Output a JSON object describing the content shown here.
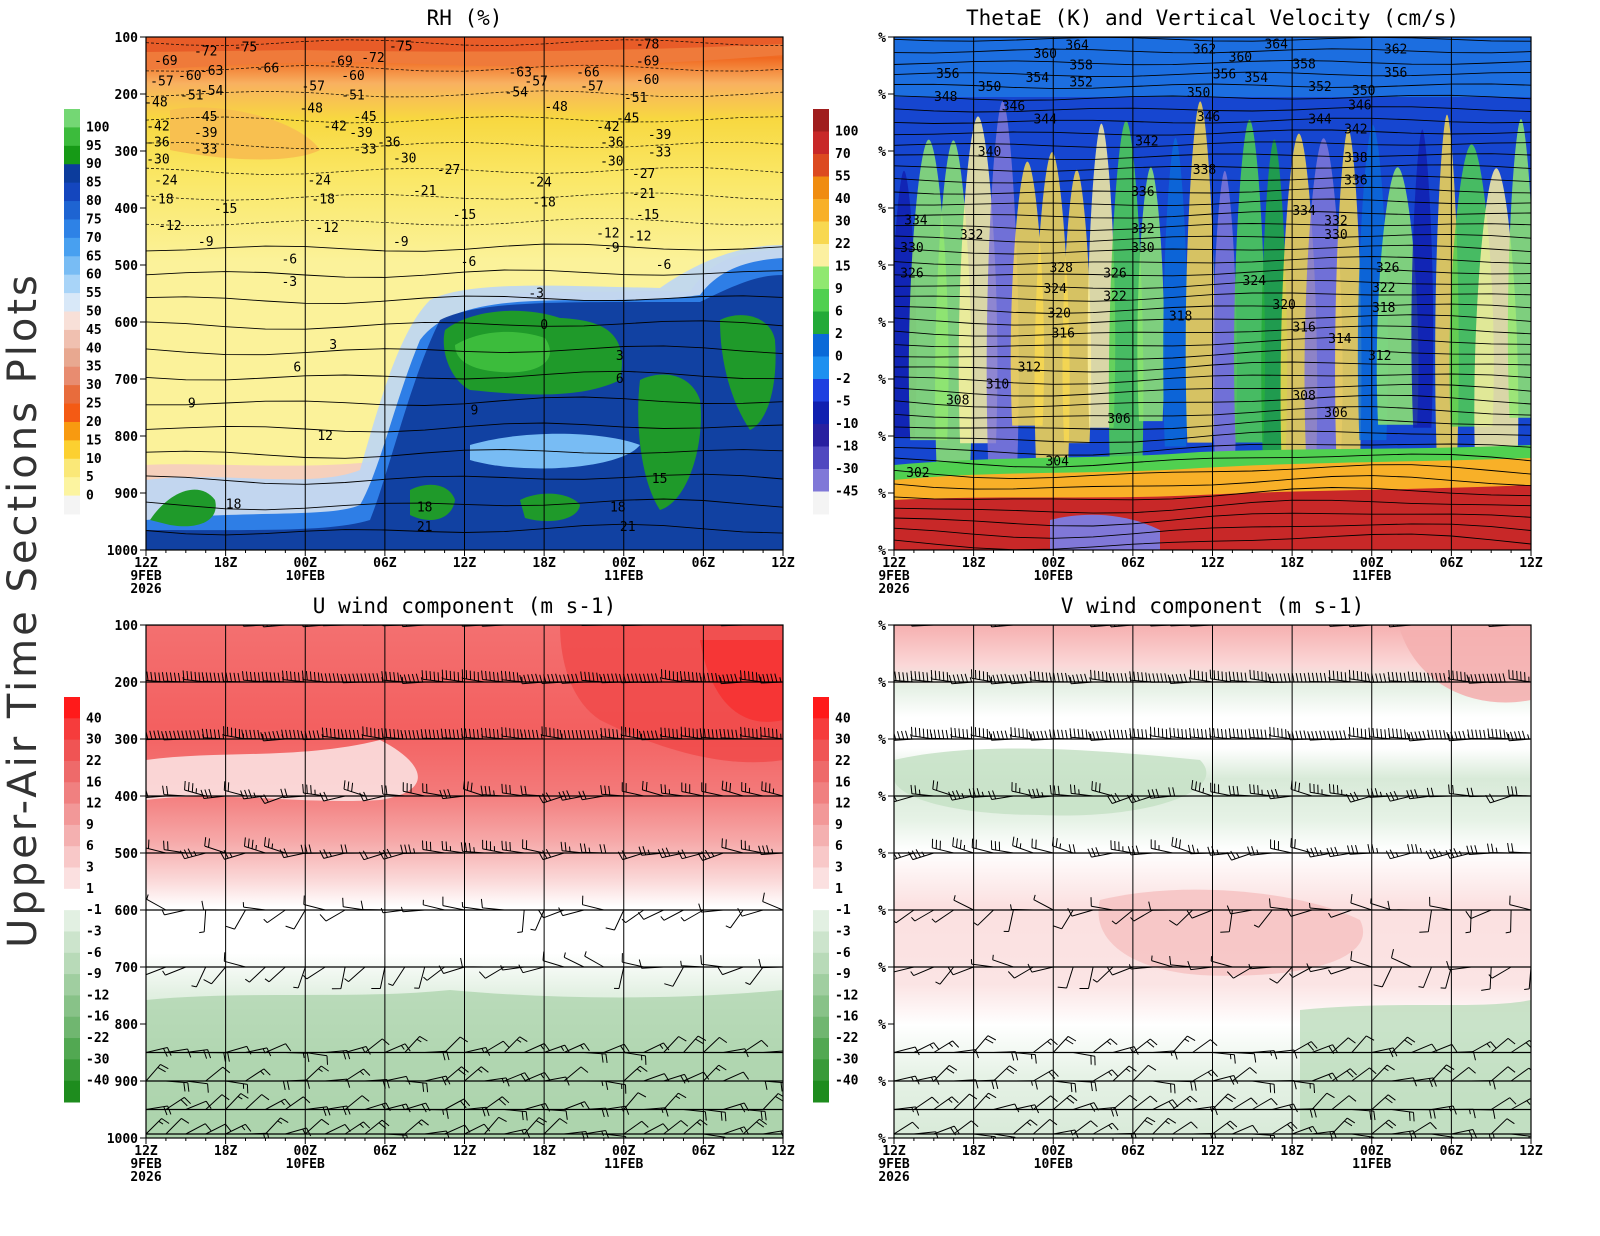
{
  "figure": {
    "side_title": "Upper-Air Time Sections Plots"
  },
  "chart_data": [
    {
      "type": "heatmap",
      "panel": "rh",
      "title": "RH (%)",
      "yticks": [
        "100",
        "200",
        "300",
        "400",
        "500",
        "600",
        "700",
        "800",
        "900",
        "1000"
      ],
      "x_major": [
        "12Z",
        "18Z",
        "00Z",
        "06Z",
        "12Z",
        "18Z",
        "00Z",
        "06Z",
        "12Z"
      ],
      "date_labels": [
        {
          "at": 0,
          "date": "9FEB",
          "year": "2026"
        },
        {
          "at": 2,
          "date": "10FEB"
        },
        {
          "at": 6,
          "date": "11FEB"
        }
      ],
      "colorbar_levels": [
        "100",
        "95",
        "90",
        "85",
        "80",
        "75",
        "70",
        "65",
        "60",
        "55",
        "50",
        "45",
        "40",
        "35",
        "30",
        "25",
        "20",
        "15",
        "10",
        "5",
        "0"
      ],
      "colorbar_colors": [
        "#74d774",
        "#3cbb3c",
        "#169a16",
        "#0c3c9c",
        "#1446be",
        "#1e64d2",
        "#2e82e6",
        "#48a0f0",
        "#78bcf4",
        "#a8d4f8",
        "#d8e8f8",
        "#f8e0d8",
        "#f0c0b0",
        "#e8a890",
        "#e88c70",
        "#e86c3c",
        "#f45a14",
        "#f89a10",
        "#fcd030",
        "#fae878",
        "#fcf4a0",
        "#f4f4f4"
      ],
      "contour_labels": [
        {
          "t": 0.5,
          "p": 142,
          "v": "-69"
        },
        {
          "t": 1.5,
          "p": 125,
          "v": "-72"
        },
        {
          "t": 2.5,
          "p": 118,
          "v": "-75"
        },
        {
          "t": 0.4,
          "p": 178,
          "v": "-57"
        },
        {
          "t": 1.1,
          "p": 168,
          "v": "-60"
        },
        {
          "t": 1.65,
          "p": 160,
          "v": "-63"
        },
        {
          "t": 3.05,
          "p": 155,
          "v": "-66"
        },
        {
          "t": 4.9,
          "p": 143,
          "v": "-69"
        },
        {
          "t": 5.7,
          "p": 137,
          "v": "-72"
        },
        {
          "t": 6.4,
          "p": 117,
          "v": "-75"
        },
        {
          "t": 12.6,
          "p": 113,
          "v": "-78"
        },
        {
          "t": 12.6,
          "p": 143,
          "v": "-69"
        },
        {
          "t": 12.6,
          "p": 175,
          "v": "-60"
        },
        {
          "t": 11.1,
          "p": 162,
          "v": "-66"
        },
        {
          "t": 9.4,
          "p": 162,
          "v": "-63"
        },
        {
          "t": 9.8,
          "p": 178,
          "v": "-57"
        },
        {
          "t": 9.3,
          "p": 197,
          "v": "-54"
        },
        {
          "t": 11.2,
          "p": 187,
          "v": "-57"
        },
        {
          "t": 4.2,
          "p": 187,
          "v": "-57"
        },
        {
          "t": 5.2,
          "p": 168,
          "v": "-60"
        },
        {
          "t": 1.65,
          "p": 195,
          "v": "-54"
        },
        {
          "t": 1.15,
          "p": 203,
          "v": "-51"
        },
        {
          "t": 5.2,
          "p": 203,
          "v": "-51"
        },
        {
          "t": 12.3,
          "p": 207,
          "v": "-51"
        },
        {
          "t": 0.25,
          "p": 215,
          "v": "-48"
        },
        {
          "t": 4.15,
          "p": 225,
          "v": "-48"
        },
        {
          "t": 10.3,
          "p": 223,
          "v": "-48"
        },
        {
          "t": 1.5,
          "p": 240,
          "v": "-45"
        },
        {
          "t": 5.5,
          "p": 240,
          "v": "-45"
        },
        {
          "t": 12.1,
          "p": 243,
          "v": "-45"
        },
        {
          "t": 0.3,
          "p": 257,
          "v": "-42"
        },
        {
          "t": 4.75,
          "p": 257,
          "v": "-42"
        },
        {
          "t": 11.6,
          "p": 258,
          "v": "-42"
        },
        {
          "t": 1.5,
          "p": 268,
          "v": "-39"
        },
        {
          "t": 5.4,
          "p": 268,
          "v": "-39"
        },
        {
          "t": 12.9,
          "p": 272,
          "v": "-39"
        },
        {
          "t": 0.3,
          "p": 285,
          "v": "-36"
        },
        {
          "t": 6.1,
          "p": 285,
          "v": "-36"
        },
        {
          "t": 11.7,
          "p": 285,
          "v": "-36"
        },
        {
          "t": 1.5,
          "p": 297,
          "v": "-33"
        },
        {
          "t": 5.5,
          "p": 297,
          "v": "-33"
        },
        {
          "t": 12.9,
          "p": 303,
          "v": "-33"
        },
        {
          "t": 0.3,
          "p": 315,
          "v": "-30"
        },
        {
          "t": 6.5,
          "p": 313,
          "v": "-30"
        },
        {
          "t": 11.7,
          "p": 318,
          "v": "-30"
        },
        {
          "t": 12.5,
          "p": 340,
          "v": "-27"
        },
        {
          "t": 7.6,
          "p": 333,
          "v": "-27"
        },
        {
          "t": 0.5,
          "p": 352,
          "v": "-24"
        },
        {
          "t": 4.35,
          "p": 352,
          "v": "-24"
        },
        {
          "t": 9.9,
          "p": 355,
          "v": "-24"
        },
        {
          "t": 7,
          "p": 370,
          "v": "-21"
        },
        {
          "t": 12.5,
          "p": 375,
          "v": "-21"
        },
        {
          "t": 0.4,
          "p": 385,
          "v": "-18"
        },
        {
          "t": 4.45,
          "p": 385,
          "v": "-18"
        },
        {
          "t": 10,
          "p": 390,
          "v": "-18"
        },
        {
          "t": 2,
          "p": 402,
          "v": "-15"
        },
        {
          "t": 8,
          "p": 412,
          "v": "-15"
        },
        {
          "t": 12.6,
          "p": 412,
          "v": "-15"
        },
        {
          "t": 0.6,
          "p": 432,
          "v": "-12"
        },
        {
          "t": 4.55,
          "p": 435,
          "v": "-12"
        },
        {
          "t": 11.6,
          "p": 445,
          "v": "-12"
        },
        {
          "t": 1.5,
          "p": 460,
          "v": "-9"
        },
        {
          "t": 6.4,
          "p": 460,
          "v": "-9"
        },
        {
          "t": 11.7,
          "p": 470,
          "v": "-9"
        },
        {
          "t": 12.4,
          "p": 450,
          "v": "-12"
        },
        {
          "t": 3.6,
          "p": 490,
          "v": "-6"
        },
        {
          "t": 8.1,
          "p": 495,
          "v": "-6"
        },
        {
          "t": 13.0,
          "p": 500,
          "v": "-6"
        },
        {
          "t": 3.6,
          "p": 530,
          "v": "-3"
        },
        {
          "t": 9.8,
          "p": 550,
          "v": "-3"
        },
        {
          "t": 10,
          "p": 605,
          "v": "0"
        },
        {
          "t": 4.7,
          "p": 640,
          "v": "3"
        },
        {
          "t": 11.9,
          "p": 660,
          "v": "3"
        },
        {
          "t": 3.8,
          "p": 680,
          "v": "6"
        },
        {
          "t": 11.9,
          "p": 700,
          "v": "6"
        },
        {
          "t": 1.15,
          "p": 743,
          "v": "9"
        },
        {
          "t": 8.25,
          "p": 755,
          "v": "9"
        },
        {
          "t": 4.5,
          "p": 800,
          "v": "12"
        },
        {
          "t": 12.9,
          "p": 875,
          "v": "15"
        },
        {
          "t": 2.2,
          "p": 920,
          "v": "18"
        },
        {
          "t": 7,
          "p": 925,
          "v": "18"
        },
        {
          "t": 11.85,
          "p": 925,
          "v": "18"
        },
        {
          "t": 7,
          "p": 960,
          "v": "21"
        },
        {
          "t": 12.1,
          "p": 960,
          "v": "21"
        }
      ]
    },
    {
      "type": "heatmap",
      "panel": "thetae",
      "title": "ThetaE (K) and Vertical Velocity (cm/s)",
      "yticks": [
        "%",
        "%",
        "%",
        "%",
        "%",
        "%",
        "%",
        "%",
        "%",
        "%"
      ],
      "x_major": [
        "12Z",
        "18Z",
        "00Z",
        "06Z",
        "12Z",
        "18Z",
        "00Z",
        "06Z",
        "12Z"
      ],
      "date_labels": [
        {
          "at": 0,
          "date": "9FEB",
          "year": "2026"
        },
        {
          "at": 2,
          "date": "10FEB"
        },
        {
          "at": 6,
          "date": "11FEB"
        }
      ],
      "colorbar_levels": [
        "100",
        "70",
        "55",
        "40",
        "30",
        "22",
        "15",
        "9",
        "6",
        "2",
        "0",
        "-2",
        "-5",
        "-10",
        "-18",
        "-30",
        "-45"
      ],
      "colorbar_colors": [
        "#a01e1e",
        "#c82828",
        "#dc4a20",
        "#f08c10",
        "#f8b028",
        "#f8d850",
        "#fcf0a0",
        "#90e870",
        "#50d050",
        "#22aa38",
        "#0a6ad8",
        "#1e90f0",
        "#1e40e0",
        "#1020b0",
        "#2820a0",
        "#5048c0",
        "#8078d8",
        "#f4f4f4"
      ],
      "contour_labels": [
        {
          "t": 4.6,
          "p": 115,
          "v": "364"
        },
        {
          "t": 3.8,
          "p": 130,
          "v": "360"
        },
        {
          "t": 7.8,
          "p": 122,
          "v": "362"
        },
        {
          "t": 8.7,
          "p": 136,
          "v": "360"
        },
        {
          "t": 9.6,
          "p": 113,
          "v": "364"
        },
        {
          "t": 10.3,
          "p": 148,
          "v": "358"
        },
        {
          "t": 12.6,
          "p": 122,
          "v": "362"
        },
        {
          "t": 4.7,
          "p": 150,
          "v": "358"
        },
        {
          "t": 3.6,
          "p": 172,
          "v": "354"
        },
        {
          "t": 1.35,
          "p": 165,
          "v": "356"
        },
        {
          "t": 12.6,
          "p": 163,
          "v": "356"
        },
        {
          "t": 8.3,
          "p": 166,
          "v": "356"
        },
        {
          "t": 9.1,
          "p": 172,
          "v": "354"
        },
        {
          "t": 2.4,
          "p": 188,
          "v": "350"
        },
        {
          "t": 4.7,
          "p": 180,
          "v": "352"
        },
        {
          "t": 1.3,
          "p": 205,
          "v": "348"
        },
        {
          "t": 7.65,
          "p": 198,
          "v": "350"
        },
        {
          "t": 10.7,
          "p": 188,
          "v": "352"
        },
        {
          "t": 11.8,
          "p": 195,
          "v": "350"
        },
        {
          "t": 3,
          "p": 222,
          "v": "346"
        },
        {
          "t": 7.9,
          "p": 240,
          "v": "346"
        },
        {
          "t": 11.7,
          "p": 220,
          "v": "346"
        },
        {
          "t": 3.8,
          "p": 245,
          "v": "344"
        },
        {
          "t": 10.7,
          "p": 245,
          "v": "344"
        },
        {
          "t": 11.6,
          "p": 262,
          "v": "342"
        },
        {
          "t": 6.35,
          "p": 283,
          "v": "342"
        },
        {
          "t": 2.4,
          "p": 302,
          "v": "340"
        },
        {
          "t": 11.6,
          "p": 312,
          "v": "338"
        },
        {
          "t": 7.8,
          "p": 333,
          "v": "338"
        },
        {
          "t": 11.6,
          "p": 352,
          "v": "336"
        },
        {
          "t": 6.25,
          "p": 372,
          "v": "336"
        },
        {
          "t": 10.3,
          "p": 405,
          "v": "334"
        },
        {
          "t": 0.55,
          "p": 422,
          "v": "334"
        },
        {
          "t": 11.1,
          "p": 423,
          "v": "332"
        },
        {
          "t": 1.95,
          "p": 447,
          "v": "332"
        },
        {
          "t": 6.25,
          "p": 437,
          "v": "332"
        },
        {
          "t": 11.1,
          "p": 447,
          "v": "330"
        },
        {
          "t": 0.45,
          "p": 470,
          "v": "330"
        },
        {
          "t": 6.25,
          "p": 470,
          "v": "330"
        },
        {
          "t": 4.2,
          "p": 505,
          "v": "328"
        },
        {
          "t": 5.55,
          "p": 515,
          "v": "326"
        },
        {
          "t": 0.45,
          "p": 515,
          "v": "326"
        },
        {
          "t": 12.4,
          "p": 505,
          "v": "326"
        },
        {
          "t": 9.05,
          "p": 528,
          "v": "324"
        },
        {
          "t": 4.05,
          "p": 542,
          "v": "324"
        },
        {
          "t": 12.3,
          "p": 540,
          "v": "322"
        },
        {
          "t": 5.55,
          "p": 555,
          "v": "322"
        },
        {
          "t": 9.8,
          "p": 570,
          "v": "320"
        },
        {
          "t": 4.15,
          "p": 585,
          "v": "320"
        },
        {
          "t": 12.3,
          "p": 575,
          "v": "318"
        },
        {
          "t": 7.2,
          "p": 590,
          "v": "318"
        },
        {
          "t": 10.3,
          "p": 610,
          "v": "316"
        },
        {
          "t": 4.25,
          "p": 620,
          "v": "316"
        },
        {
          "t": 11.2,
          "p": 630,
          "v": "314"
        },
        {
          "t": 12.2,
          "p": 660,
          "v": "312"
        },
        {
          "t": 3.4,
          "p": 680,
          "v": "312"
        },
        {
          "t": 2.6,
          "p": 710,
          "v": "310"
        },
        {
          "t": 1.6,
          "p": 738,
          "v": "308"
        },
        {
          "t": 10.3,
          "p": 730,
          "v": "308"
        },
        {
          "t": 11.1,
          "p": 760,
          "v": "306"
        },
        {
          "t": 5.65,
          "p": 770,
          "v": "306"
        },
        {
          "t": 4.1,
          "p": 845,
          "v": "304"
        },
        {
          "t": 0.6,
          "p": 865,
          "v": "302"
        }
      ]
    },
    {
      "type": "heatmap",
      "panel": "uwind",
      "title": "U wind component (m s-1)",
      "yticks": [
        "100",
        "200",
        "300",
        "400",
        "500",
        "600",
        "700",
        "800",
        "900",
        "1000"
      ],
      "x_major": [
        "12Z",
        "18Z",
        "00Z",
        "06Z",
        "12Z",
        "18Z",
        "00Z",
        "06Z",
        "12Z"
      ],
      "date_labels": [
        {
          "at": 0,
          "date": "9FEB",
          "year": "2026"
        },
        {
          "at": 2,
          "date": "10FEB"
        },
        {
          "at": 6,
          "date": "11FEB"
        }
      ],
      "colorbar_levels": [
        "40",
        "30",
        "22",
        "16",
        "12",
        "9",
        "6",
        "3",
        "1",
        "-1",
        "-3",
        "-6",
        "-9",
        "-12",
        "-16",
        "-22",
        "-30",
        "-40"
      ],
      "colorbar_colors": [
        "#ff1a1a",
        "#f63c3c",
        "#f05454",
        "#ee6a6a",
        "#f08080",
        "#f29898",
        "#f4b0b0",
        "#f8c8c8",
        "#fbe0e0",
        "#ffffff",
        "#e2f0e2",
        "#cce4cc",
        "#b8dab8",
        "#a0cea0",
        "#88c288",
        "#70b670",
        "#52a852",
        "#389a38",
        "#1e8c1e"
      ]
    },
    {
      "type": "heatmap",
      "panel": "vwind",
      "title": "V wind component (m s-1)",
      "yticks": [
        "%",
        "%",
        "%",
        "%",
        "%",
        "%",
        "%",
        "%",
        "%",
        "%"
      ],
      "x_major": [
        "12Z",
        "18Z",
        "00Z",
        "06Z",
        "12Z",
        "18Z",
        "00Z",
        "06Z",
        "12Z"
      ],
      "date_labels": [
        {
          "at": 0,
          "date": "9FEB",
          "year": "2026"
        },
        {
          "at": 2,
          "date": "10FEB"
        },
        {
          "at": 6,
          "date": "11FEB"
        }
      ],
      "colorbar_levels": [
        "40",
        "30",
        "22",
        "16",
        "12",
        "9",
        "6",
        "3",
        "1",
        "-1",
        "-3",
        "-6",
        "-9",
        "-12",
        "-16",
        "-22",
        "-30",
        "-40"
      ],
      "colorbar_colors": [
        "#ff1a1a",
        "#f63c3c",
        "#f05454",
        "#ee6a6a",
        "#f08080",
        "#f29898",
        "#f4b0b0",
        "#f8c8c8",
        "#fbe0e0",
        "#ffffff",
        "#e2f0e2",
        "#cce4cc",
        "#b8dab8",
        "#a0cea0",
        "#88c288",
        "#70b670",
        "#52a852",
        "#389a38",
        "#1e8c1e"
      ]
    }
  ]
}
